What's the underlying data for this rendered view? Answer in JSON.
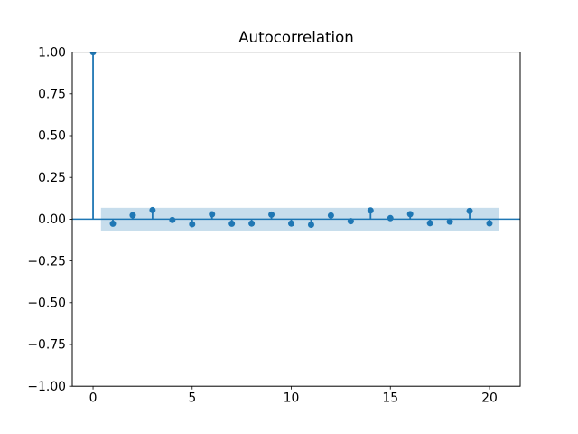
{
  "figure": {
    "background": "#ffffff"
  },
  "chart_data": {
    "type": "stem",
    "title": "Autocorrelation",
    "xlabel": "",
    "ylabel": "",
    "x": [
      0,
      1,
      2,
      3,
      4,
      5,
      6,
      7,
      8,
      9,
      10,
      11,
      12,
      13,
      14,
      15,
      16,
      17,
      18,
      19,
      20
    ],
    "values": [
      1.0,
      -0.027,
      0.023,
      0.054,
      -0.005,
      -0.03,
      0.029,
      -0.027,
      -0.026,
      0.027,
      -0.026,
      -0.033,
      0.022,
      -0.012,
      0.052,
      0.006,
      0.03,
      -0.024,
      -0.015,
      0.049,
      -0.025
    ],
    "xlim": [
      -1.05,
      21.55
    ],
    "ylim": [
      -1.0,
      1.0
    ],
    "xticks": [
      0,
      5,
      10,
      15,
      20
    ],
    "xtick_labels": [
      "0",
      "5",
      "10",
      "15",
      "20"
    ],
    "yticks": [
      1.0,
      0.75,
      0.5,
      0.25,
      0.0,
      -0.25,
      -0.5,
      -0.75,
      -1.0
    ],
    "ytick_labels": [
      "1.00",
      "0.75",
      "0.50",
      "0.25",
      "0.00",
      "−0.25",
      "−0.50",
      "−0.75",
      "−1.00"
    ],
    "zero_line": 0.0,
    "confidence_band": {
      "half_width": 0.068,
      "x_start": 0.4,
      "x_end": 20.5
    },
    "grid": false,
    "legend": null,
    "colors": {
      "series": "#1f77b4",
      "band": "rgba(31, 119, 180, 0.25)",
      "axes": "#000000",
      "background": "#ffffff"
    }
  }
}
